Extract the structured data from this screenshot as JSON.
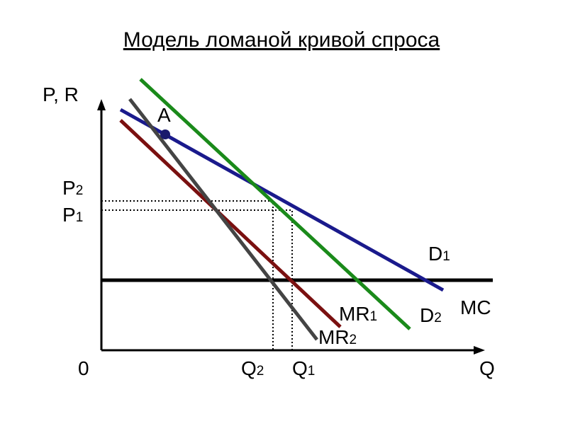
{
  "title": "Модель ломаной кривой спроса",
  "axes": {
    "y_label": "P, R",
    "x_label": "Q",
    "origin": "0"
  },
  "point": "A",
  "price_labels": [
    {
      "base": "P",
      "sub": "2"
    },
    {
      "base": "P",
      "sub": "1"
    }
  ],
  "quantity_labels": [
    {
      "base": "Q",
      "sub": "2"
    },
    {
      "base": "Q",
      "sub": "1"
    }
  ],
  "curves": [
    {
      "base": "D",
      "sub": "1"
    },
    {
      "base": "D",
      "sub": "2"
    },
    {
      "base": "MR",
      "sub": "1"
    },
    {
      "base": "MR",
      "sub": "2"
    },
    {
      "base": "MC"
    }
  ]
}
